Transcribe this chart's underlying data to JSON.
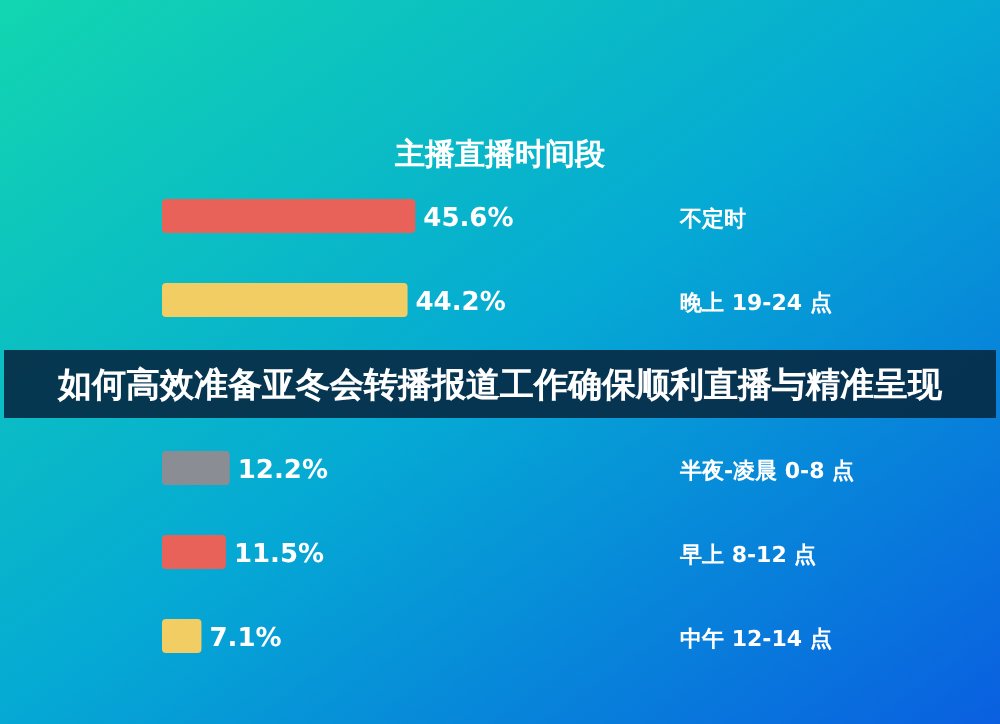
{
  "chart_data": {
    "type": "bar",
    "orientation": "horizontal",
    "title": "主播直播时间段",
    "categories": [
      "不定时",
      "晚上 19-24 点",
      null,
      "半夜-凌晨 0-8 点",
      "早上 8-12 点",
      "中午 12-14 点"
    ],
    "values": [
      45.6,
      44.2,
      null,
      12.2,
      11.5,
      7.1
    ],
    "value_labels": [
      "45.6%",
      "44.2%",
      null,
      "12.2%",
      "11.5%",
      "7.1%"
    ],
    "colors": [
      "#e8625a",
      "#f2cd63",
      null,
      "#8a8d93",
      "#e8625a",
      "#f2cd63"
    ],
    "annotations": [
      "如何高效准备亚冬会转播报道工作确保顺利直播与精准呈现"
    ]
  }
}
